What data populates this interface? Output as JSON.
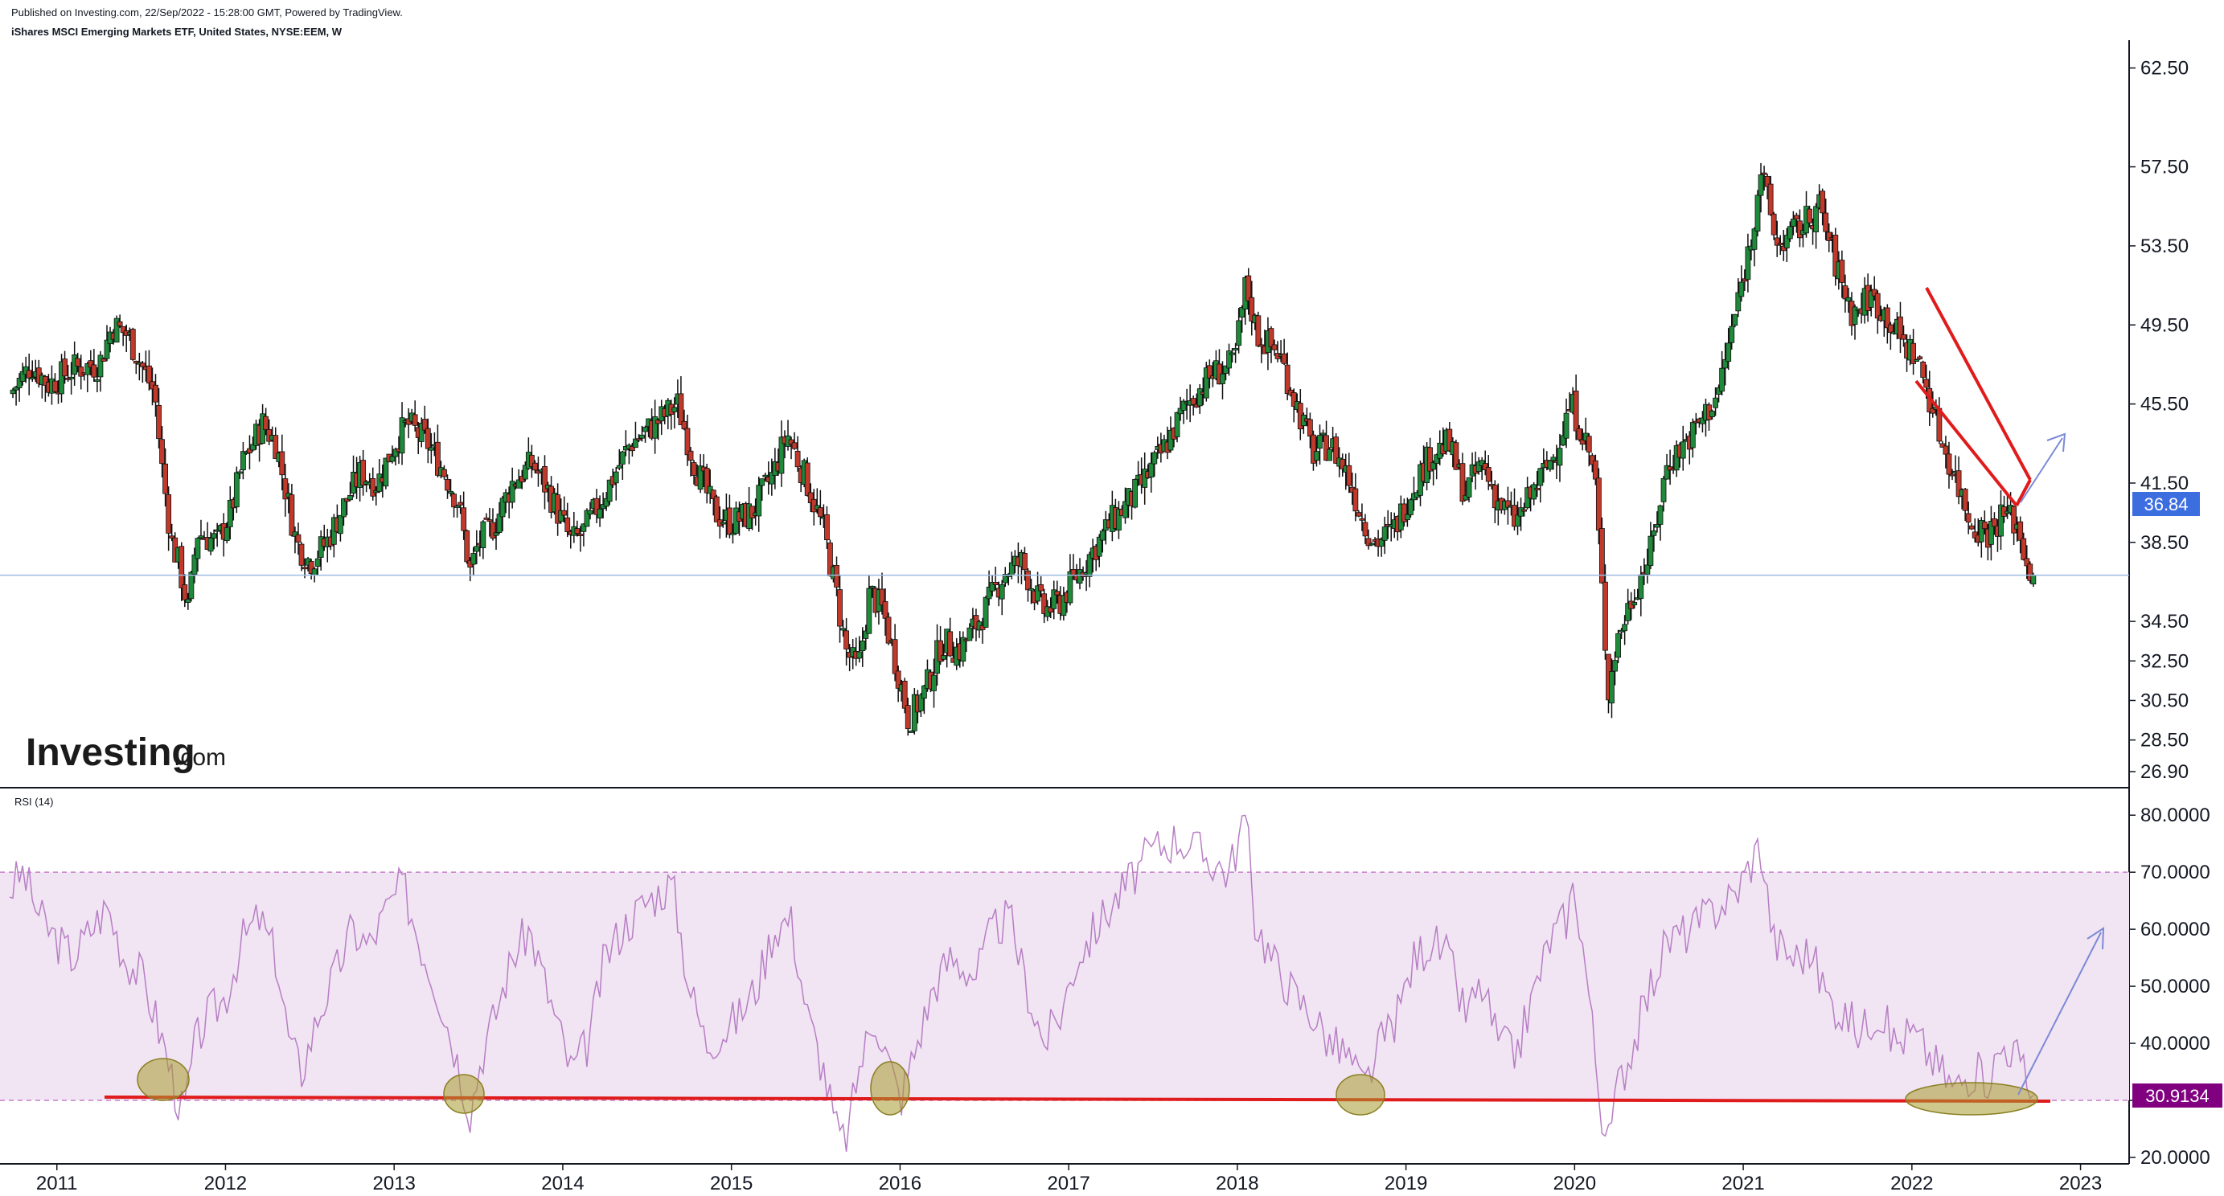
{
  "header": {
    "publish_line": "Published on Investing.com, 22/Sep/2022 - 15:28:00 GMT, Powered by TradingView.",
    "symbol_line": "iShares MSCI Emerging Markets ETF, United States, NYSE:EEM, W"
  },
  "logo": {
    "main": "Investing",
    "domain": ".com"
  },
  "colors": {
    "up": "#26a69a",
    "up_body": "#1e8a3a",
    "down": "#c0392b",
    "wick": "#111111",
    "rsi_line": "#b77fc4",
    "rsi_band": "#f1e4f3",
    "trend_red": "#e01b1b",
    "arrow_blue": "#7b8ad6",
    "price_badge": "#3d6ee0",
    "rsi_badge": "#800080",
    "circle_fill": "#a89b2e"
  },
  "chart_data": [
    {
      "type": "candlestick",
      "title": "iShares MSCI Emerging Markets ETF, United States, NYSE:EEM, W",
      "ylim": [
        26.9,
        63.5
      ],
      "y_ticks": [
        "62.50",
        "57.50",
        "53.50",
        "49.50",
        "45.50",
        "41.50",
        "38.50",
        "34.50",
        "32.50",
        "30.50",
        "28.50",
        "26.90"
      ],
      "x_ticks": [
        "2011",
        "2012",
        "2013",
        "2014",
        "2015",
        "2016",
        "2017",
        "2018",
        "2019",
        "2020",
        "2021",
        "2022",
        "2023"
      ],
      "xlim": [
        2010.72,
        2023.25
      ],
      "last_price": "36.84",
      "close_path": [
        [
          2010.72,
          46.0
        ],
        [
          2010.85,
          47.5
        ],
        [
          2010.95,
          46.5
        ],
        [
          2011.1,
          47.3
        ],
        [
          2011.25,
          47.5
        ],
        [
          2011.33,
          49.5
        ],
        [
          2011.42,
          49.0
        ],
        [
          2011.5,
          47.5
        ],
        [
          2011.58,
          46.0
        ],
        [
          2011.62,
          42.5
        ],
        [
          2011.68,
          38.5
        ],
        [
          2011.72,
          37.5
        ],
        [
          2011.78,
          35.0
        ],
        [
          2011.83,
          39.0
        ],
        [
          2011.95,
          38.5
        ],
        [
          2012.03,
          40.0
        ],
        [
          2012.1,
          42.5
        ],
        [
          2012.22,
          44.5
        ],
        [
          2012.3,
          43.5
        ],
        [
          2012.42,
          38.5
        ],
        [
          2012.5,
          37.5
        ],
        [
          2012.6,
          38.5
        ],
        [
          2012.68,
          40.0
        ],
        [
          2012.8,
          42.0
        ],
        [
          2012.9,
          41.5
        ],
        [
          2013.0,
          43.5
        ],
        [
          2013.08,
          44.5
        ],
        [
          2013.2,
          43.5
        ],
        [
          2013.3,
          42.0
        ],
        [
          2013.38,
          40.5
        ],
        [
          2013.45,
          37.0
        ],
        [
          2013.5,
          38.5
        ],
        [
          2013.6,
          39.5
        ],
        [
          2013.7,
          41.5
        ],
        [
          2013.82,
          42.5
        ],
        [
          2013.92,
          41.0
        ],
        [
          2014.05,
          38.5
        ],
        [
          2014.12,
          39.0
        ],
        [
          2014.25,
          41.0
        ],
        [
          2014.4,
          43.5
        ],
        [
          2014.55,
          44.5
        ],
        [
          2014.68,
          45.5
        ],
        [
          2014.78,
          42.5
        ],
        [
          2014.9,
          40.0
        ],
        [
          2015.0,
          39.5
        ],
        [
          2015.12,
          40.0
        ],
        [
          2015.25,
          42.0
        ],
        [
          2015.33,
          44.0
        ],
        [
          2015.45,
          41.5
        ],
        [
          2015.55,
          39.0
        ],
        [
          2015.62,
          36.0
        ],
        [
          2015.68,
          33.0
        ],
        [
          2015.75,
          32.0
        ],
        [
          2015.82,
          36.0
        ],
        [
          2015.9,
          35.0
        ],
        [
          2016.0,
          31.5
        ],
        [
          2016.05,
          29.5
        ],
        [
          2016.15,
          31.0
        ],
        [
          2016.25,
          33.5
        ],
        [
          2016.35,
          33.0
        ],
        [
          2016.5,
          35.0
        ],
        [
          2016.62,
          37.0
        ],
        [
          2016.72,
          37.5
        ],
        [
          2016.85,
          35.0
        ],
        [
          2016.95,
          35.5
        ],
        [
          2017.1,
          37.5
        ],
        [
          2017.25,
          39.5
        ],
        [
          2017.4,
          41.0
        ],
        [
          2017.55,
          43.0
        ],
        [
          2017.7,
          45.5
        ],
        [
          2017.85,
          47.0
        ],
        [
          2017.98,
          47.5
        ],
        [
          2018.05,
          51.5
        ],
        [
          2018.12,
          49.0
        ],
        [
          2018.25,
          48.0
        ],
        [
          2018.35,
          45.5
        ],
        [
          2018.45,
          43.0
        ],
        [
          2018.55,
          43.5
        ],
        [
          2018.65,
          42.0
        ],
        [
          2018.75,
          39.5
        ],
        [
          2018.82,
          38.5
        ],
        [
          2018.92,
          39.0
        ],
        [
          2019.05,
          41.5
        ],
        [
          2019.15,
          43.0
        ],
        [
          2019.25,
          43.5
        ],
        [
          2019.35,
          41.0
        ],
        [
          2019.45,
          42.5
        ],
        [
          2019.55,
          40.5
        ],
        [
          2019.65,
          39.5
        ],
        [
          2019.75,
          41.0
        ],
        [
          2019.88,
          43.0
        ],
        [
          2019.98,
          45.5
        ],
        [
          2020.05,
          44.0
        ],
        [
          2020.12,
          42.0
        ],
        [
          2020.17,
          35.0
        ],
        [
          2020.2,
          31.0
        ],
        [
          2020.25,
          33.5
        ],
        [
          2020.35,
          36.0
        ],
        [
          2020.45,
          38.0
        ],
        [
          2020.55,
          42.5
        ],
        [
          2020.7,
          44.0
        ],
        [
          2020.85,
          46.0
        ],
        [
          2020.95,
          50.0
        ],
        [
          2021.05,
          54.0
        ],
        [
          2021.1,
          57.5
        ],
        [
          2021.2,
          53.5
        ],
        [
          2021.35,
          54.5
        ],
        [
          2021.45,
          55.5
        ],
        [
          2021.55,
          52.5
        ],
        [
          2021.65,
          50.0
        ],
        [
          2021.75,
          51.0
        ],
        [
          2021.85,
          50.0
        ],
        [
          2021.95,
          48.5
        ],
        [
          2022.02,
          48.0
        ],
        [
          2022.1,
          46.0
        ],
        [
          2022.18,
          43.5
        ],
        [
          2022.25,
          42.0
        ],
        [
          2022.35,
          39.5
        ],
        [
          2022.45,
          39.0
        ],
        [
          2022.55,
          40.0
        ],
        [
          2022.62,
          39.5
        ],
        [
          2022.68,
          37.5
        ],
        [
          2022.72,
          36.84
        ]
      ],
      "last_candle_year": 2022.72
    },
    {
      "type": "line",
      "title": "RSI (14)",
      "ylim": [
        20,
        82
      ],
      "y_ticks": [
        "80.0000",
        "70.0000",
        "60.0000",
        "50.0000",
        "40.0000",
        "30.0000",
        "20.0000"
      ],
      "band": [
        30,
        70
      ],
      "last_value": "30.9134",
      "rsi_path": [
        [
          2010.72,
          67
        ],
        [
          2010.8,
          70
        ],
        [
          2010.9,
          62
        ],
        [
          2011.0,
          58
        ],
        [
          2011.1,
          55
        ],
        [
          2011.2,
          60
        ],
        [
          2011.3,
          64
        ],
        [
          2011.4,
          55
        ],
        [
          2011.5,
          52
        ],
        [
          2011.58,
          45
        ],
        [
          2011.65,
          38
        ],
        [
          2011.7,
          32
        ],
        [
          2011.75,
          27
        ],
        [
          2011.82,
          40
        ],
        [
          2011.9,
          45
        ],
        [
          2012.0,
          48
        ],
        [
          2012.1,
          58
        ],
        [
          2012.2,
          62
        ],
        [
          2012.3,
          55
        ],
        [
          2012.38,
          40
        ],
        [
          2012.45,
          35
        ],
        [
          2012.55,
          45
        ],
        [
          2012.65,
          52
        ],
        [
          2012.75,
          60
        ],
        [
          2012.85,
          57
        ],
        [
          2012.95,
          63
        ],
        [
          2013.05,
          68
        ],
        [
          2013.15,
          58
        ],
        [
          2013.25,
          50
        ],
        [
          2013.35,
          40
        ],
        [
          2013.45,
          28
        ],
        [
          2013.52,
          38
        ],
        [
          2013.6,
          45
        ],
        [
          2013.7,
          55
        ],
        [
          2013.8,
          60
        ],
        [
          2013.9,
          50
        ],
        [
          2014.05,
          35
        ],
        [
          2014.15,
          40
        ],
        [
          2014.25,
          55
        ],
        [
          2014.35,
          60
        ],
        [
          2014.5,
          65
        ],
        [
          2014.65,
          68
        ],
        [
          2014.75,
          50
        ],
        [
          2014.85,
          40
        ],
        [
          2014.95,
          42
        ],
        [
          2015.05,
          45
        ],
        [
          2015.15,
          50
        ],
        [
          2015.25,
          60
        ],
        [
          2015.35,
          62
        ],
        [
          2015.45,
          45
        ],
        [
          2015.55,
          35
        ],
        [
          2015.62,
          25
        ],
        [
          2015.68,
          22
        ],
        [
          2015.75,
          35
        ],
        [
          2015.85,
          45
        ],
        [
          2015.95,
          35
        ],
        [
          2016.0,
          30
        ],
        [
          2016.08,
          38
        ],
        [
          2016.2,
          50
        ],
        [
          2016.3,
          55
        ],
        [
          2016.45,
          52
        ],
        [
          2016.55,
          60
        ],
        [
          2016.65,
          62
        ],
        [
          2016.75,
          50
        ],
        [
          2016.85,
          40
        ],
        [
          2016.95,
          45
        ],
        [
          2017.05,
          55
        ],
        [
          2017.2,
          62
        ],
        [
          2017.35,
          68
        ],
        [
          2017.5,
          74
        ],
        [
          2017.65,
          76
        ],
        [
          2017.8,
          73
        ],
        [
          2017.95,
          70
        ],
        [
          2018.05,
          80
        ],
        [
          2018.1,
          62
        ],
        [
          2018.2,
          55
        ],
        [
          2018.35,
          48
        ],
        [
          2018.45,
          45
        ],
        [
          2018.55,
          40
        ],
        [
          2018.65,
          38
        ],
        [
          2018.75,
          32
        ],
        [
          2018.85,
          40
        ],
        [
          2018.95,
          45
        ],
        [
          2019.05,
          55
        ],
        [
          2019.15,
          58
        ],
        [
          2019.25,
          55
        ],
        [
          2019.35,
          45
        ],
        [
          2019.45,
          50
        ],
        [
          2019.55,
          40
        ],
        [
          2019.65,
          38
        ],
        [
          2019.75,
          48
        ],
        [
          2019.85,
          58
        ],
        [
          2019.95,
          62
        ],
        [
          2020.0,
          68
        ],
        [
          2020.08,
          50
        ],
        [
          2020.15,
          30
        ],
        [
          2020.2,
          22
        ],
        [
          2020.25,
          32
        ],
        [
          2020.35,
          40
        ],
        [
          2020.45,
          50
        ],
        [
          2020.55,
          58
        ],
        [
          2020.7,
          60
        ],
        [
          2020.85,
          64
        ],
        [
          2020.95,
          66
        ],
        [
          2021.05,
          72
        ],
        [
          2021.1,
          75
        ],
        [
          2021.18,
          58
        ],
        [
          2021.3,
          55
        ],
        [
          2021.4,
          56
        ],
        [
          2021.5,
          48
        ],
        [
          2021.6,
          45
        ],
        [
          2021.7,
          42
        ],
        [
          2021.8,
          46
        ],
        [
          2021.9,
          40
        ],
        [
          2022.0,
          42
        ],
        [
          2022.1,
          38
        ],
        [
          2022.18,
          35
        ],
        [
          2022.25,
          32
        ],
        [
          2022.35,
          35
        ],
        [
          2022.45,
          34
        ],
        [
          2022.55,
          40
        ],
        [
          2022.62,
          38
        ],
        [
          2022.68,
          33
        ],
        [
          2022.72,
          30.9134
        ]
      ]
    }
  ]
}
